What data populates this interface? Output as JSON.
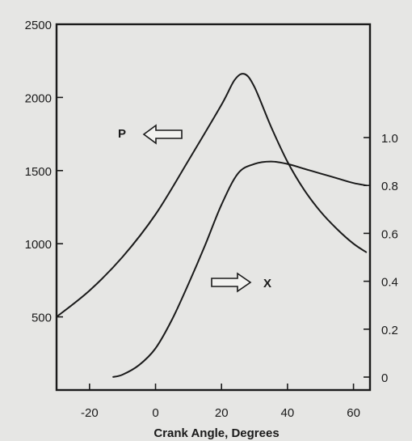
{
  "chart_data": {
    "type": "line",
    "title": "",
    "xlabel": "Crank Angle, Degrees",
    "ylabel": "",
    "y2label": "",
    "xlim": [
      -30,
      65
    ],
    "ylim": [
      0,
      2500
    ],
    "y2lim": [
      0,
      1.5
    ],
    "grid": false,
    "x_ticks": [
      -20,
      0,
      20,
      40,
      60
    ],
    "y_ticks": [
      500,
      1000,
      1500,
      2000,
      2500
    ],
    "y2_ticks": [
      "0",
      "0.2",
      "0.4",
      "0.6",
      "0.8",
      "1.0"
    ],
    "annotations": [
      {
        "text": "P",
        "arrow": "left"
      },
      {
        "text": "X",
        "arrow": "right"
      }
    ],
    "series": [
      {
        "axis": "left",
        "x": [
          -30,
          -20,
          -10,
          0,
          10,
          20,
          24,
          27,
          30,
          35,
          40,
          45,
          50,
          55,
          60,
          64
        ],
        "y": [
          500,
          680,
          910,
          1200,
          1570,
          1950,
          2120,
          2160,
          2070,
          1800,
          1560,
          1370,
          1220,
          1100,
          1000,
          940
        ]
      },
      {
        "axis": "right",
        "x": [
          -13,
          -10,
          -5,
          0,
          5,
          10,
          15,
          20,
          25,
          30,
          35,
          40,
          45,
          50,
          55,
          60,
          64
        ],
        "y": [
          0,
          0.01,
          0.05,
          0.12,
          0.24,
          0.39,
          0.55,
          0.72,
          0.85,
          0.89,
          0.9,
          0.89,
          0.87,
          0.85,
          0.83,
          0.81,
          0.8
        ]
      }
    ]
  }
}
